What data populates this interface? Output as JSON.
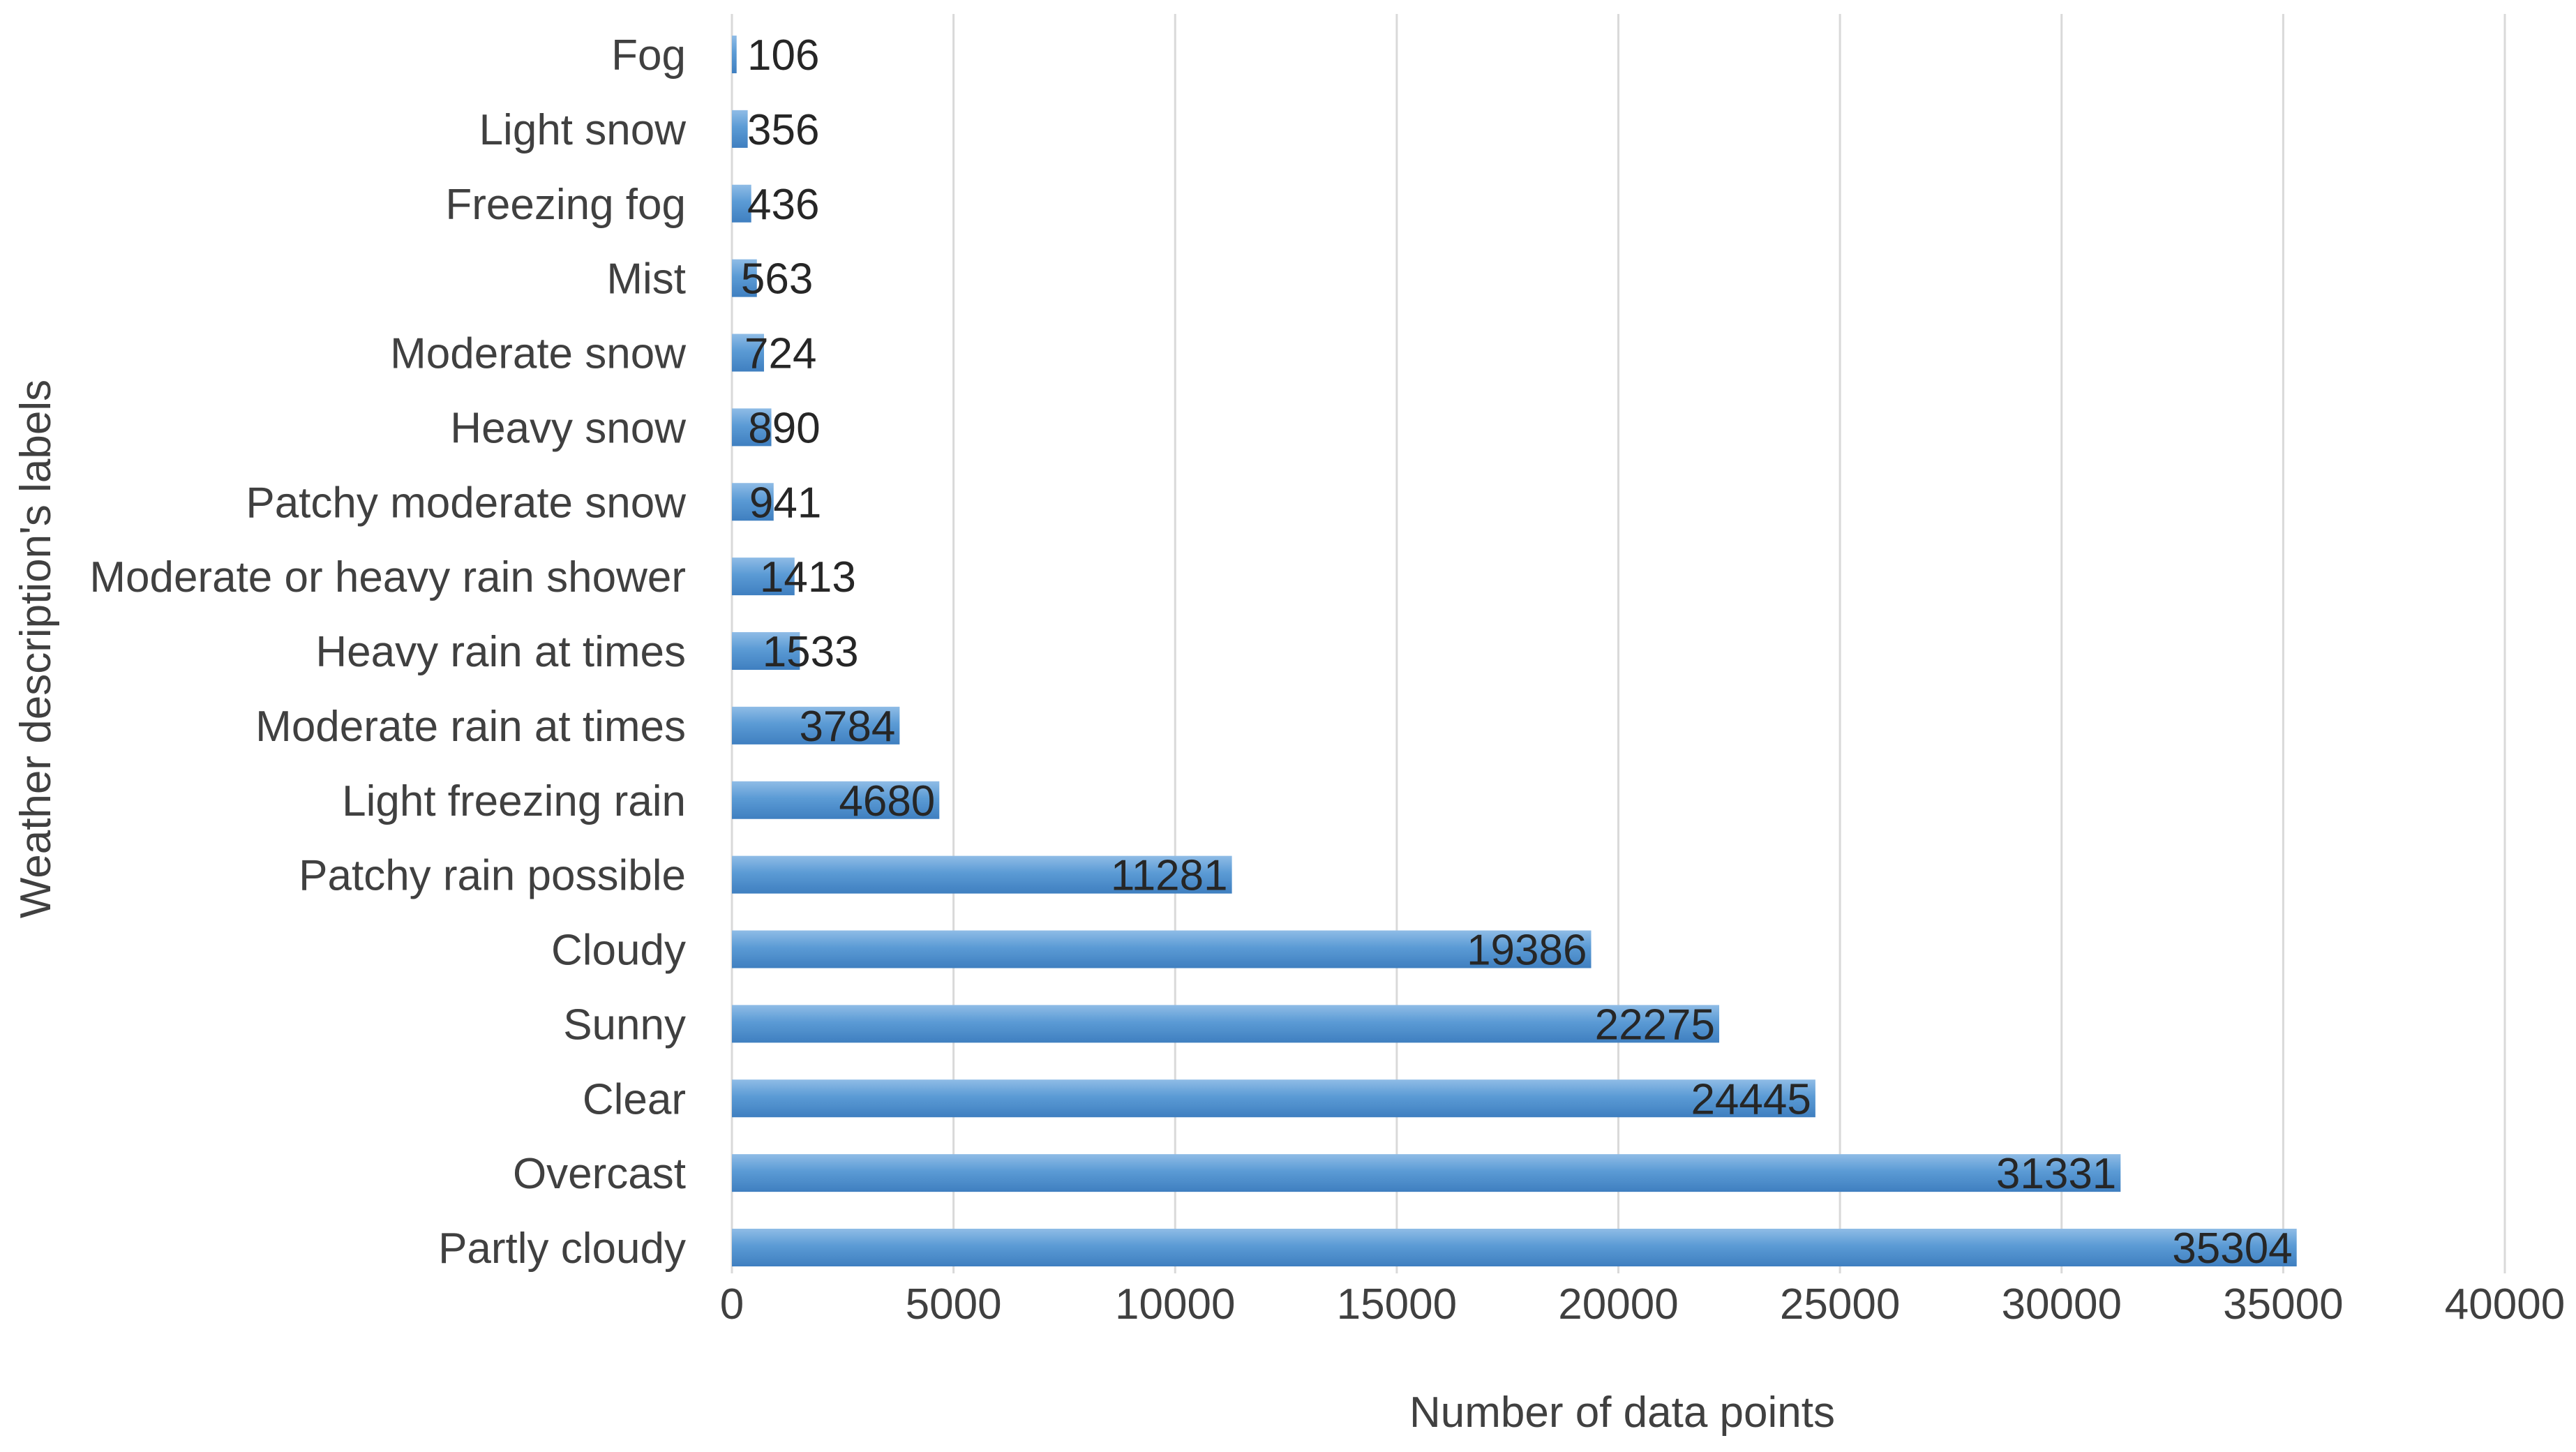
{
  "chart_data": {
    "type": "bar",
    "orientation": "horizontal",
    "categories": [
      "Partly cloudy",
      "Overcast",
      "Clear",
      "Sunny",
      "Cloudy ",
      "Patchy rain possible",
      "Light freezing rain",
      "Moderate rain at times",
      "Heavy rain at times",
      "Moderate or heavy rain shower",
      "Patchy moderate snow",
      "Heavy snow",
      "Moderate snow",
      "Mist",
      "Freezing fog",
      "Light snow",
      "Fog"
    ],
    "values": [
      35304,
      31331,
      24445,
      22275,
      19386,
      11281,
      4680,
      3784,
      1533,
      1413,
      941,
      890,
      724,
      563,
      436,
      356,
      106
    ],
    "xlabel": "Number of data points",
    "ylabel": "Weather description's labels",
    "xlim": [
      0,
      40000
    ],
    "xticks": [
      0,
      5000,
      10000,
      15000,
      20000,
      25000,
      30000,
      35000,
      40000
    ],
    "grid": "vertical",
    "legend": "none",
    "data_labels": true,
    "colors": {
      "bar": "#5B9BD5",
      "bar_light": "#8FBCE6",
      "bar_dark": "#3F7FC0",
      "gridline": "#D9D9D9",
      "text": "#404040"
    }
  }
}
